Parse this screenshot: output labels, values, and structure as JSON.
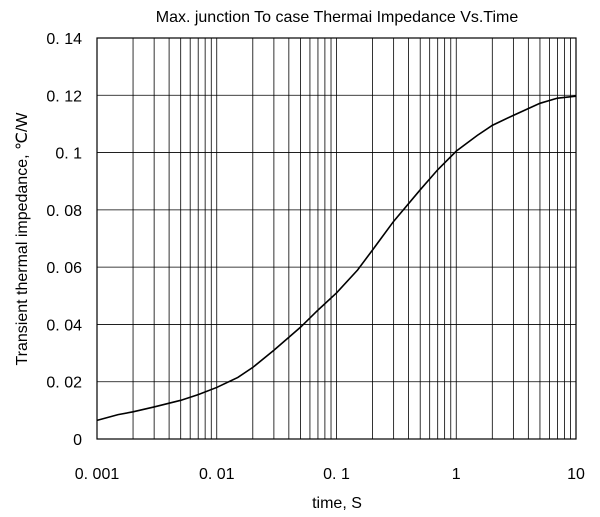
{
  "chart_data": {
    "type": "line",
    "title": "Max. junction To case Thermai  Impedance  Vs.Time",
    "xlabel": "time, S",
    "ylabel": "Transient thermal impedance, ℃/W",
    "x_scale": "log",
    "xlim": [
      0.001,
      10
    ],
    "ylim": [
      0,
      0.14
    ],
    "x_ticks": [
      0.001,
      0.01,
      0.1,
      1,
      10
    ],
    "x_tick_labels": [
      "0. 001",
      "0. 01",
      "0. 1",
      "1",
      "10"
    ],
    "y_ticks": [
      0,
      0.02,
      0.04,
      0.06,
      0.08,
      0.1,
      0.12,
      0.14
    ],
    "y_tick_labels": [
      "0",
      "0. 02",
      "0. 04",
      "0. 06",
      "0. 08",
      "0. 1",
      "0. 12",
      "0. 14"
    ],
    "grid": true,
    "series": [
      {
        "x": [
          0.001,
          0.0015,
          0.002,
          0.003,
          0.005,
          0.007,
          0.01,
          0.015,
          0.02,
          0.03,
          0.05,
          0.07,
          0.1,
          0.15,
          0.2,
          0.3,
          0.5,
          0.7,
          1,
          1.5,
          2,
          3,
          5,
          7,
          10
        ],
        "y": [
          0.0065,
          0.0085,
          0.0095,
          0.0112,
          0.0135,
          0.0155,
          0.018,
          0.0215,
          0.025,
          0.031,
          0.039,
          0.045,
          0.051,
          0.059,
          0.066,
          0.076,
          0.087,
          0.094,
          0.1005,
          0.106,
          0.1095,
          0.113,
          0.1172,
          0.119,
          0.1197
        ]
      }
    ]
  }
}
